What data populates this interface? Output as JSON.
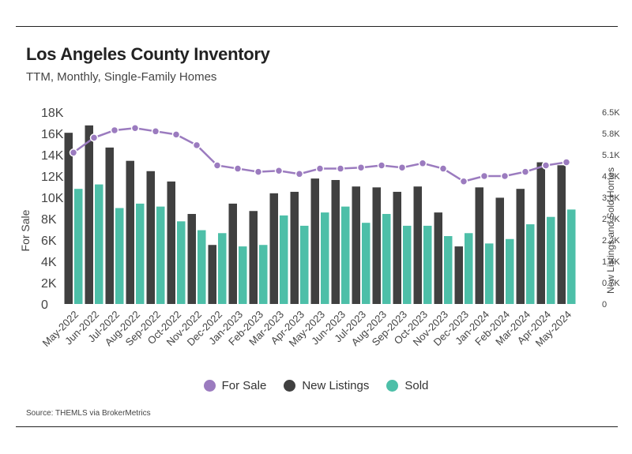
{
  "header": {
    "title": "Los Angeles County Inventory",
    "subtitle": "TTM, Monthly, Single-Family Homes"
  },
  "footer": {
    "source": "Source:  THEMLS via BrokerMetrics"
  },
  "colors": {
    "for_sale": "#9b7bbf",
    "new_listings": "#404040",
    "sold": "#4dbfa8"
  },
  "chart_data": {
    "type": "bar",
    "categories": [
      "May-2022",
      "Jun-2022",
      "Jul-2022",
      "Aug-2022",
      "Sep-2022",
      "Oct-2022",
      "Nov-2022",
      "Dec-2022",
      "Jan-2023",
      "Feb-2023",
      "Mar-2023",
      "Apr-2023",
      "May-2023",
      "Jun-2023",
      "Jul-2023",
      "Aug-2023",
      "Sep-2023",
      "Oct-2023",
      "Nov-2023",
      "Dec-2023",
      "Jan-2024",
      "Feb-2024",
      "Mar-2024",
      "Apr-2024",
      "May-2024"
    ],
    "series": [
      {
        "name": "For Sale",
        "type": "line",
        "axis": "left",
        "values": [
          14200,
          15600,
          16300,
          16500,
          16200,
          15900,
          14900,
          13000,
          12700,
          12400,
          12500,
          12200,
          12700,
          12700,
          12800,
          13000,
          12800,
          13200,
          12700,
          11500,
          12000,
          12000,
          12400,
          13000,
          13300
        ]
      },
      {
        "name": "New Listings",
        "type": "bar",
        "axis": "right",
        "values": [
          5800,
          6050,
          5300,
          4850,
          4500,
          4150,
          3050,
          2000,
          3400,
          3150,
          3750,
          3800,
          4250,
          4200,
          3980,
          3950,
          3800,
          3980,
          3100,
          1950,
          3950,
          3600,
          3900,
          4800,
          4700
        ]
      },
      {
        "name": "Sold",
        "type": "bar",
        "axis": "right",
        "values": [
          3900,
          4050,
          3250,
          3400,
          3300,
          2800,
          2500,
          2400,
          1950,
          2000,
          3000,
          2650,
          3100,
          3300,
          2750,
          3050,
          2650,
          2650,
          2300,
          2400,
          2050,
          2200,
          2700,
          2950,
          3200
        ]
      }
    ],
    "y_left": {
      "label": "For Sale",
      "ticks": [
        "0",
        "2K",
        "4K",
        "6K",
        "8K",
        "10K",
        "12K",
        "14K",
        "16K",
        "18K"
      ],
      "ylim": [
        0,
        18000
      ]
    },
    "y_right": {
      "label": "New Listings and Sold Homes",
      "ticks": [
        "0",
        "0.7K",
        "1.4K",
        "2.2K",
        "2.9K",
        "3.6K",
        "4.3K",
        "5.1K",
        "5.8K",
        "6.5K"
      ],
      "ylim": [
        0,
        6500
      ]
    },
    "legend": [
      "For Sale",
      "New Listings",
      "Sold"
    ],
    "legend_position": "bottom",
    "grid": false
  }
}
